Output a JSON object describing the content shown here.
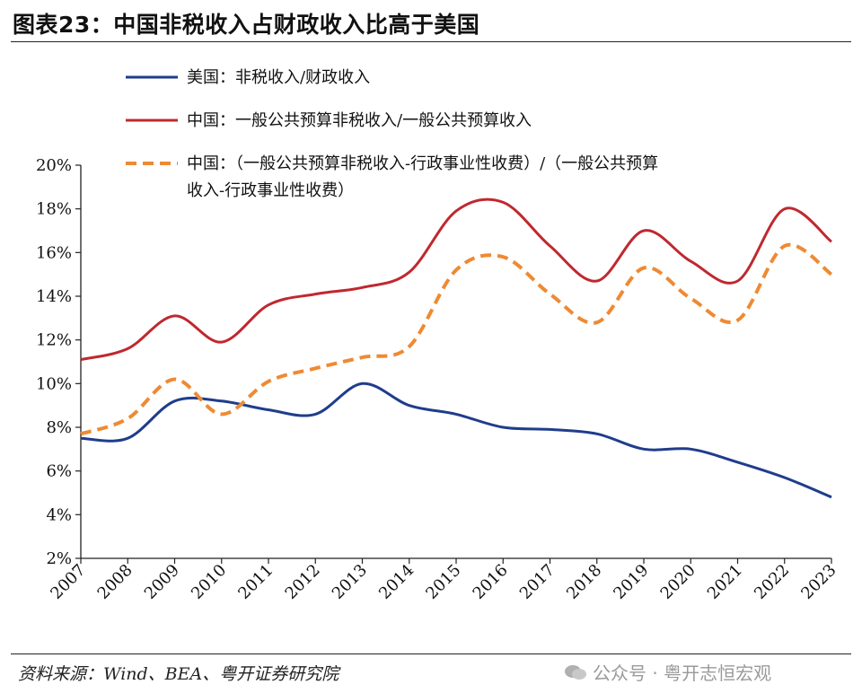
{
  "header": {
    "title": "图表23：中国非税收入占财政收入比高于美国"
  },
  "footer": {
    "source": "资料来源：Wind、BEA、粤开证券研究院",
    "watermark": "公众号 · 粤开志恒宏观"
  },
  "chart_data": {
    "type": "line",
    "x": [
      "2007",
      "2008",
      "2009",
      "2010",
      "2011",
      "2012",
      "2013",
      "2014",
      "2015",
      "2016",
      "2017",
      "2018",
      "2019",
      "2020",
      "2021",
      "2022",
      "2023"
    ],
    "ylim": [
      2,
      20
    ],
    "yticks": [
      "2%",
      "4%",
      "6%",
      "8%",
      "10%",
      "12%",
      "14%",
      "16%",
      "18%",
      "20%"
    ],
    "grid": false,
    "legend_position": "top",
    "series": [
      {
        "name": "美国：非税收入/财政收入",
        "color": "#1f3d8c",
        "style": "solid",
        "values": [
          7.5,
          7.5,
          9.2,
          9.2,
          8.8,
          8.6,
          10.0,
          9.0,
          8.6,
          8.0,
          7.9,
          7.7,
          7.0,
          7.0,
          6.4,
          5.7,
          4.8
        ]
      },
      {
        "name": "中国：一般公共预算非税收入/一般公共预算收入",
        "color": "#c0282f",
        "style": "solid",
        "values": [
          11.1,
          11.6,
          13.1,
          11.9,
          13.6,
          14.1,
          14.4,
          15.1,
          17.9,
          18.3,
          16.3,
          14.7,
          17.0,
          15.6,
          14.7,
          18.0,
          16.5
        ]
      },
      {
        "name_line1": "中国：（一般公共预算非税收入-行政事业性收费）/（一般公共预算",
        "name_line2": "收入-行政事业性收费）",
        "color": "#ee8a33",
        "style": "dashed",
        "values": [
          7.7,
          8.4,
          10.2,
          8.6,
          10.1,
          10.7,
          11.2,
          11.7,
          15.2,
          15.8,
          14.1,
          12.8,
          15.3,
          13.9,
          12.9,
          16.3,
          15.0
        ]
      }
    ]
  }
}
